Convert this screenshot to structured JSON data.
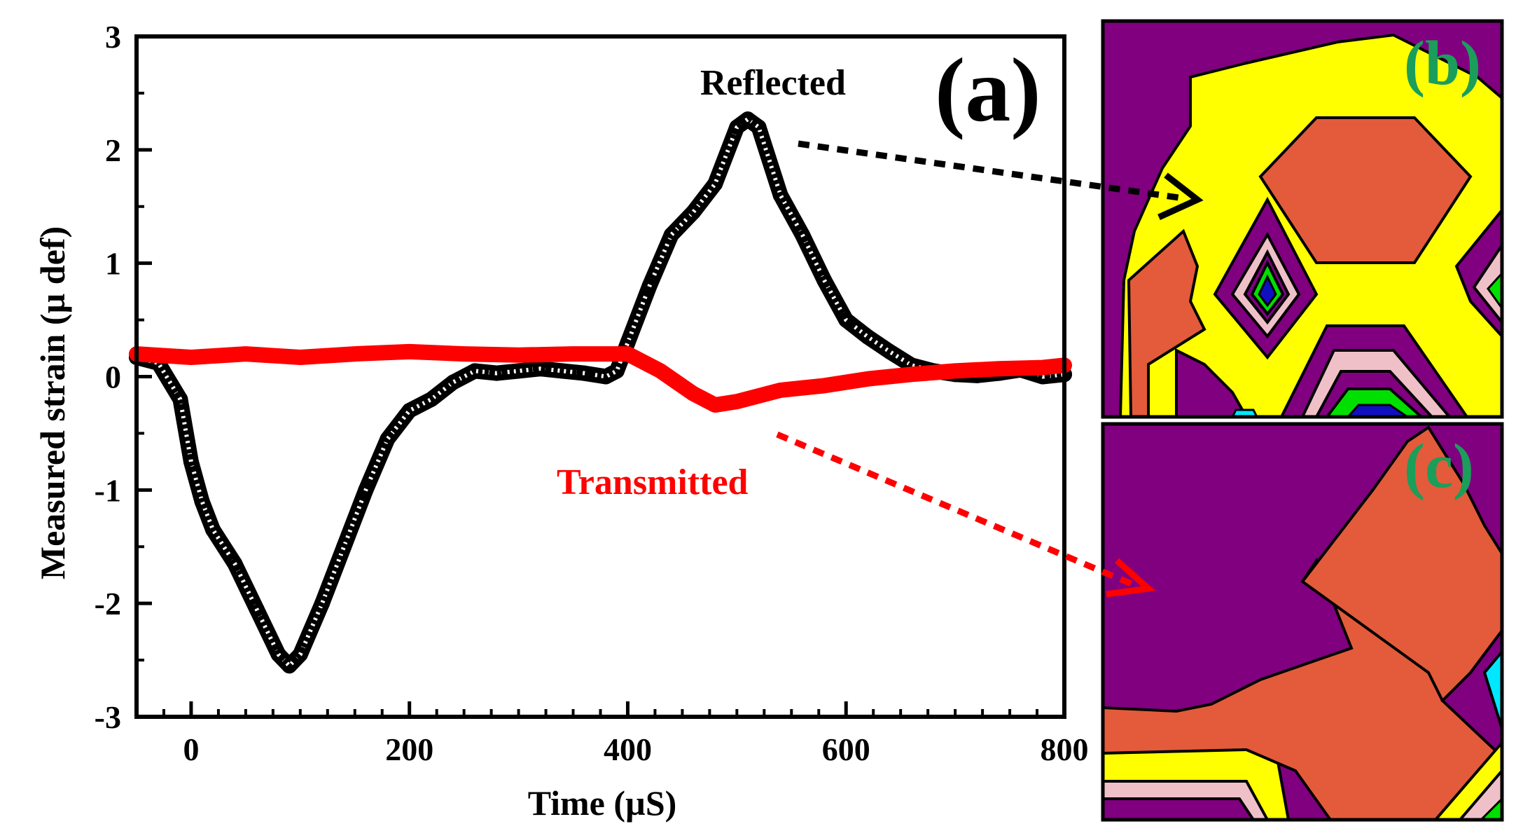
{
  "chart_data": {
    "type": "line",
    "panel_label": "(a)",
    "xlabel": "Time (µS)",
    "ylabel": "Measured strain (µ def)",
    "xlim": [
      -50,
      800
    ],
    "ylim": [
      -3,
      3
    ],
    "x_ticks": [
      0,
      200,
      400,
      600,
      800
    ],
    "y_ticks": [
      -3,
      -2,
      -1,
      0,
      1,
      2,
      3
    ],
    "grid": false,
    "series": [
      {
        "name": "Reflected",
        "color": "#000000",
        "marker": "open-triangle",
        "points": [
          [
            -50,
            0.17
          ],
          [
            -30,
            0.12
          ],
          [
            -10,
            -0.2
          ],
          [
            0,
            -0.75
          ],
          [
            10,
            -1.1
          ],
          [
            20,
            -1.35
          ],
          [
            40,
            -1.65
          ],
          [
            60,
            -2.05
          ],
          [
            80,
            -2.45
          ],
          [
            90,
            -2.55
          ],
          [
            100,
            -2.45
          ],
          [
            120,
            -2.0
          ],
          [
            140,
            -1.5
          ],
          [
            160,
            -1.0
          ],
          [
            180,
            -0.55
          ],
          [
            200,
            -0.3
          ],
          [
            220,
            -0.2
          ],
          [
            240,
            -0.05
          ],
          [
            260,
            0.05
          ],
          [
            280,
            0.03
          ],
          [
            300,
            0.05
          ],
          [
            320,
            0.07
          ],
          [
            340,
            0.05
          ],
          [
            360,
            0.03
          ],
          [
            380,
            0.0
          ],
          [
            390,
            0.05
          ],
          [
            400,
            0.3
          ],
          [
            420,
            0.8
          ],
          [
            440,
            1.25
          ],
          [
            460,
            1.45
          ],
          [
            480,
            1.7
          ],
          [
            500,
            2.2
          ],
          [
            510,
            2.27
          ],
          [
            520,
            2.2
          ],
          [
            540,
            1.6
          ],
          [
            560,
            1.25
          ],
          [
            580,
            0.85
          ],
          [
            600,
            0.5
          ],
          [
            620,
            0.35
          ],
          [
            640,
            0.22
          ],
          [
            660,
            0.1
          ],
          [
            680,
            0.05
          ],
          [
            700,
            0.02
          ],
          [
            720,
            0.01
          ],
          [
            740,
            0.03
          ],
          [
            760,
            0.06
          ],
          [
            780,
            0.0
          ],
          [
            800,
            0.02
          ]
        ]
      },
      {
        "name": "Transmitted",
        "color": "#ff0000",
        "marker": "circle",
        "points": [
          [
            -50,
            0.2
          ],
          [
            0,
            0.17
          ],
          [
            50,
            0.2
          ],
          [
            100,
            0.17
          ],
          [
            150,
            0.2
          ],
          [
            200,
            0.22
          ],
          [
            250,
            0.2
          ],
          [
            300,
            0.19
          ],
          [
            350,
            0.2
          ],
          [
            400,
            0.2
          ],
          [
            430,
            0.05
          ],
          [
            460,
            -0.15
          ],
          [
            480,
            -0.25
          ],
          [
            500,
            -0.22
          ],
          [
            540,
            -0.12
          ],
          [
            580,
            -0.08
          ],
          [
            620,
            -0.02
          ],
          [
            660,
            0.02
          ],
          [
            700,
            0.05
          ],
          [
            740,
            0.07
          ],
          [
            780,
            0.08
          ],
          [
            800,
            0.1
          ]
        ]
      }
    ],
    "insets": [
      {
        "panel_label": "(b)",
        "type": "contour"
      },
      {
        "panel_label": "(c)",
        "type": "contour"
      }
    ]
  },
  "colors": {
    "reflected": "#000000",
    "transmitted": "#ff0000",
    "inset_label": "#1a9e5a",
    "contour_purple": "#800080",
    "contour_orange": "#e35b3a",
    "contour_yellow": "#ffff00",
    "contour_pink": "#f0c0c8",
    "contour_green": "#00e000",
    "contour_blue": "#1010c0",
    "contour_cyan": "#00e8ff"
  }
}
